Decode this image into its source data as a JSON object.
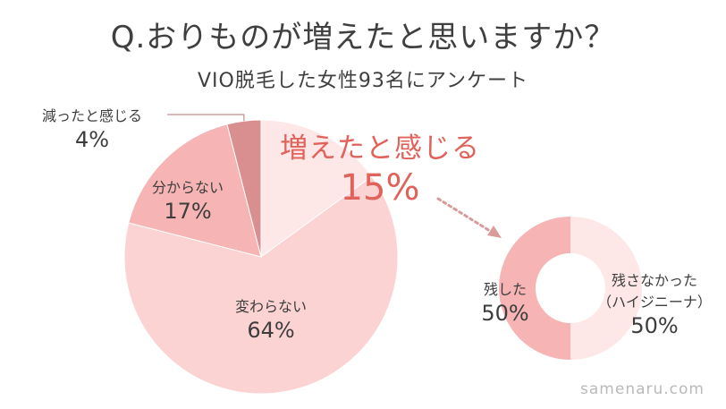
{
  "title": "Q.おりものが増えたと思いますか？",
  "subtitle": "VIO脱毛した女性93名にアンケート",
  "watermark": "samenaru.com",
  "colors": {
    "highlight_text": "#e0625a",
    "arrow": "#d99a9a",
    "leader_line": "#c98c8c"
  },
  "chart_data": [
    {
      "type": "pie",
      "title": "",
      "unit": "%",
      "slices": [
        {
          "label": "増えたと感じる",
          "value": 15,
          "color": "#fde7e7"
        },
        {
          "label": "変わらない",
          "value": 64,
          "color": "#fbd3d3"
        },
        {
          "label": "分からない",
          "value": 17,
          "color": "#f6b4b4"
        },
        {
          "label": "減ったと感じる",
          "value": 4,
          "color": "#d98f8f"
        }
      ]
    },
    {
      "type": "pie",
      "subtype": "donut",
      "title": "",
      "unit": "%",
      "slices": [
        {
          "label": "残さなかった（ハイジニーナ）",
          "label_line1": "残さなかった",
          "label_line2": "（ハイジニーナ）",
          "value": 50,
          "color": "#fde7e7"
        },
        {
          "label": "残した",
          "value": 50,
          "color": "#f6b4b4"
        }
      ]
    }
  ]
}
